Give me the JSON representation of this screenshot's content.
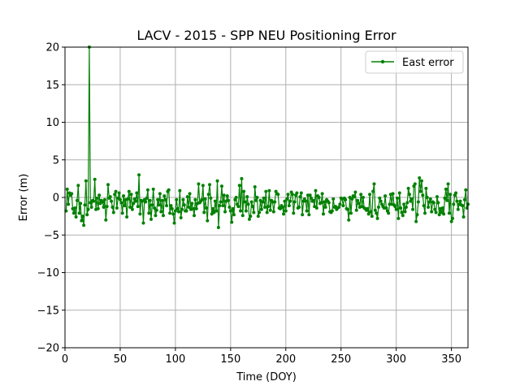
{
  "chart_data": {
    "type": "line",
    "title": "LACV - 2015 - SPP NEU Positioning Error",
    "xlabel": "Time (DOY)",
    "ylabel": "Error (m)",
    "xlim": [
      0,
      365
    ],
    "ylim": [
      -20,
      20
    ],
    "xticks": [
      0,
      50,
      100,
      150,
      200,
      250,
      300,
      350
    ],
    "yticks": [
      -20,
      -15,
      -10,
      -5,
      0,
      5,
      10,
      15,
      20
    ],
    "grid": true,
    "legend": "top-right",
    "series": [
      {
        "name": "East error",
        "color": "#008000",
        "marker": "circle",
        "x": [
          1,
          2,
          3,
          4,
          5,
          6,
          7,
          8,
          9,
          10,
          11,
          12,
          13,
          14,
          15,
          16,
          17,
          18,
          19,
          20,
          21,
          22,
          23,
          24,
          25,
          26,
          27,
          28,
          29,
          30,
          31,
          32,
          33,
          34,
          35,
          36,
          37,
          38,
          39,
          40,
          41,
          42,
          43,
          44,
          45,
          46,
          47,
          48,
          49,
          50,
          51,
          52,
          53,
          54,
          55,
          56,
          57,
          58,
          59,
          60,
          61,
          62,
          63,
          64,
          65,
          66,
          67,
          68,
          69,
          70,
          71,
          72,
          73,
          74,
          75,
          76,
          77,
          78,
          79,
          80,
          81,
          82,
          83,
          84,
          85,
          86,
          87,
          88,
          89,
          90,
          91,
          92,
          93,
          94,
          95,
          96,
          97,
          98,
          99,
          100,
          101,
          102,
          103,
          104,
          105,
          106,
          107,
          108,
          109,
          110,
          111,
          112,
          113,
          114,
          115,
          116,
          117,
          118,
          119,
          120,
          121,
          122,
          123,
          124,
          125,
          126,
          127,
          128,
          129,
          130,
          131,
          132,
          133,
          134,
          135,
          136,
          137,
          138,
          139,
          140,
          141,
          142,
          143,
          144,
          145,
          146,
          147,
          148,
          149,
          150,
          151,
          152,
          153,
          154,
          155,
          156,
          157,
          158,
          159,
          160,
          161,
          162,
          163,
          164,
          165,
          166,
          167,
          168,
          169,
          170,
          171,
          172,
          173,
          174,
          175,
          176,
          177,
          178,
          179,
          180,
          181,
          182,
          183,
          184,
          185,
          186,
          187,
          188,
          189,
          190,
          191,
          192,
          193,
          194,
          195,
          196,
          197,
          198,
          199,
          200,
          201,
          202,
          203,
          204,
          205,
          206,
          207,
          208,
          209,
          210,
          211,
          212,
          213,
          214,
          215,
          216,
          217,
          218,
          219,
          220,
          221,
          222,
          223,
          224,
          225,
          226,
          227,
          228,
          229,
          230,
          231,
          232,
          233,
          234,
          235,
          236,
          237,
          238,
          239,
          240,
          241,
          242,
          243,
          244,
          245,
          246,
          247,
          248,
          249,
          250,
          251,
          252,
          253,
          254,
          255,
          256,
          257,
          258,
          259,
          260,
          261,
          262,
          263,
          264,
          265,
          266,
          267,
          268,
          269,
          270,
          271,
          272,
          273,
          274,
          275,
          276,
          277,
          278,
          279,
          280,
          281,
          282,
          283,
          284,
          285,
          286,
          287,
          288,
          289,
          290,
          291,
          292,
          293,
          294,
          295,
          296,
          297,
          298,
          299,
          300,
          301,
          302,
          303,
          304,
          305,
          306,
          307,
          308,
          309,
          310,
          311,
          312,
          313,
          314,
          315,
          316,
          317,
          318,
          319,
          320,
          321,
          322,
          323,
          324,
          325,
          326,
          327,
          328,
          329,
          330,
          331,
          332,
          333,
          334,
          335,
          336,
          337,
          338,
          339,
          340,
          341,
          342,
          343,
          344,
          345,
          346,
          347,
          348,
          349,
          350,
          351,
          352,
          353,
          354,
          355,
          356,
          357,
          358,
          359,
          360,
          361,
          362,
          363,
          364,
          365
        ],
        "values": [
          -1.8,
          1.1,
          -0.9,
          0.6,
          0.3,
          0.5,
          -1.5,
          -2.1,
          -1.4,
          -2.6,
          -0.4,
          1.6,
          -2.1,
          -0.8,
          -3.1,
          -2.5,
          -3.7,
          -1.0,
          2.2,
          -2.3,
          -1.6,
          20.0,
          -0.7,
          -1.3,
          -0.4,
          -0.5,
          2.4,
          -1.6,
          -0.1,
          -1.5,
          0.3,
          -0.8,
          -0.4,
          -0.6,
          -1.3,
          -0.3,
          -3.0,
          -1.2,
          1.7,
          -0.1,
          0.1,
          -0.5,
          -1.3,
          -2.0,
          0.4,
          0.8,
          -1.4,
          -0.1,
          0.6,
          -0.3,
          -0.7,
          -2.1,
          0.2,
          -1.1,
          -0.3,
          -2.6,
          -0.2,
          0.8,
          -1.3,
          0.4,
          -1.6,
          -0.8,
          -0.2,
          -0.5,
          0.6,
          -1.2,
          3.0,
          -2.2,
          -0.4,
          -0.5,
          -3.4,
          -0.3,
          -0.6,
          -0.1,
          1.0,
          -2.1,
          -0.4,
          -2.9,
          -1.0,
          1.1,
          -1.4,
          -2.4,
          -1.7,
          -0.3,
          -1.0,
          0.5,
          -1.9,
          -0.4,
          -2.4,
          0.2,
          -0.3,
          -1.1,
          0.8,
          1.0,
          -2.1,
          -1.1,
          -1.5,
          -2.2,
          -3.4,
          -1.8,
          -0.3,
          -1.5,
          -1.9,
          0.9,
          -2.7,
          -1.6,
          -0.3,
          -1.0,
          -1.8,
          -1.8,
          0.1,
          -1.3,
          0.5,
          -1.6,
          -0.8,
          -1.5,
          -2.4,
          -0.3,
          -1.5,
          -0.8,
          1.8,
          -0.7,
          -0.5,
          -0.3,
          1.6,
          -2.0,
          -0.2,
          -1.4,
          -3.1,
          0.4,
          1.7,
          -0.1,
          -2.2,
          -1.5,
          -2.0,
          -0.5,
          -1.8,
          2.2,
          -4.0,
          -1.1,
          -0.6,
          1.5,
          -1.1,
          0.3,
          -1.9,
          -0.5,
          0.2,
          -0.4,
          -1.3,
          -1.8,
          -3.3,
          -1.5,
          -2.3,
          -0.3,
          0.0,
          -0.9,
          -1.2,
          1.6,
          -1.8,
          2.5,
          -2.4,
          0.8,
          -0.6,
          -1.8,
          0.1,
          -0.9,
          -2.9,
          -2.5,
          -0.6,
          -1.2,
          -2.0,
          1.4,
          -0.4,
          0.0,
          -2.5,
          -2.0,
          -0.4,
          -1.6,
          -0.6,
          -0.1,
          -1.3,
          0.8,
          -2.0,
          -1.2,
          0.9,
          -1.7,
          -0.4,
          -0.6,
          -1.9,
          -0.6,
          0.8,
          0.5,
          0.4,
          -1.4,
          -1.5,
          -1.1,
          -1.3,
          -2.2,
          -0.5,
          -1.8,
          -0.2,
          0.4,
          -1.1,
          -0.5,
          0.7,
          0.4,
          -2.1,
          -0.6,
          0.3,
          0.6,
          -1.4,
          -1.3,
          0.1,
          0.6,
          -2.3,
          -0.5,
          -0.2,
          -0.5,
          -1.8,
          0.3,
          -2.3,
          0.3,
          -0.1,
          -0.5,
          -0.4,
          -1.2,
          0.9,
          -1.4,
          0.2,
          0.0,
          -0.8,
          -0.7,
          0.5,
          -2.2,
          -0.6,
          -1.3,
          -0.3,
          -0.5,
          -0.7,
          -1.9,
          -2.0,
          -1.8,
          -0.2,
          -1.3,
          -1.2,
          -1.6,
          -1.4,
          -1.3,
          -0.9,
          -0.1,
          -0.2,
          -1.1,
          -0.1,
          -0.3,
          -1.5,
          -1.6,
          -3.0,
          0.0,
          -2.1,
          -0.2,
          0.2,
          0.1,
          0.7,
          -1.7,
          -0.4,
          -0.8,
          -1.3,
          0.4,
          -1.2,
          0.0,
          -1.4,
          -1.5,
          -1.7,
          -1.5,
          -2.2,
          0.4,
          -1.9,
          -2.5,
          0.8,
          1.8,
          -1.7,
          -2.1,
          -2.8,
          -1.3,
          -0.1,
          -0.5,
          -0.9,
          -1.2,
          -1.4,
          0.2,
          -1.4,
          -1.8,
          -2.1,
          -0.9,
          0.4,
          -0.9,
          0.5,
          -1.0,
          -1.2,
          -1.6,
          -0.1,
          -2.8,
          0.6,
          -1.4,
          -2.0,
          -2.4,
          -0.9,
          -1.9,
          -1.3,
          -0.7,
          1.2,
          0.4,
          -0.5,
          -0.2,
          -1.6,
          1.5,
          1.8,
          -3.2,
          -2.3,
          -0.6,
          2.6,
          0.8,
          2.2,
          0.3,
          -1.1,
          -2.1,
          1.2,
          0.0,
          -1.3,
          -0.6,
          -0.2,
          -1.9,
          -0.6,
          -0.7,
          -1.6,
          -2.0,
          0.1,
          -0.7,
          -2.3,
          -1.5,
          -2.0,
          -1.4,
          -2.2,
          -0.1,
          1.1,
          -0.4,
          1.8,
          -2.1,
          0.4,
          -3.2,
          -2.8,
          -0.9,
          0.3,
          0.6,
          -0.5,
          -1.6,
          -0.9,
          -0.5,
          -1.0,
          -1.1,
          -2.6,
          -0.3,
          1.0,
          -1.4,
          -0.9
        ]
      }
    ]
  }
}
